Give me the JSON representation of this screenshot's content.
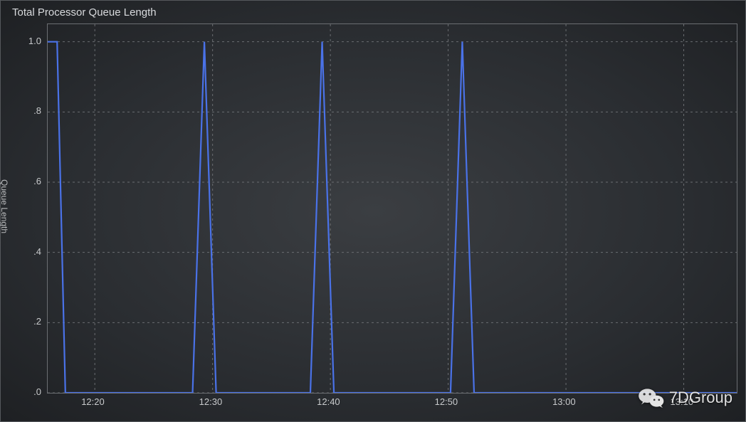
{
  "chart": {
    "type": "line",
    "title": "Total Processor Queue Length",
    "y_axis_label": "Queue Length",
    "background_gradient_inner": "#3b3e42",
    "background_gradient_outer": "#1e2023",
    "panel_border_color": "#55585c",
    "plot_border_color": "#6b6e72",
    "grid_color": "#6a6d71",
    "grid_dash": "3 4",
    "title_color": "#d8dadd",
    "tick_label_color": "#c8cacc",
    "axis_title_color": "#b8babc",
    "line_color": "#4a72e8",
    "line_width": 2.2,
    "title_fontsize": 15,
    "tick_fontsize": 13,
    "axis_title_fontsize": 12,
    "y": {
      "min": 0.0,
      "max": 1.05,
      "ticks": [
        0.0,
        0.2,
        0.4,
        0.6,
        0.8,
        1.0
      ],
      "tick_labels": [
        ".0",
        ".2",
        ".4",
        ".6",
        ".8",
        "1.0"
      ]
    },
    "x": {
      "min": 736.0,
      "max": 794.5,
      "ticks": [
        740,
        750,
        760,
        770,
        780,
        790
      ],
      "tick_labels": [
        "12:20",
        "12:30",
        "12:40",
        "12:50",
        "13:00",
        "13:10"
      ]
    },
    "series": [
      {
        "name": "queue_length",
        "points": [
          [
            736.0,
            1.0
          ],
          [
            736.8,
            1.0
          ],
          [
            737.5,
            0.0
          ],
          [
            748.3,
            0.0
          ],
          [
            749.3,
            1.0
          ],
          [
            750.3,
            0.0
          ],
          [
            758.3,
            0.0
          ],
          [
            759.3,
            1.0
          ],
          [
            760.3,
            0.0
          ],
          [
            770.2,
            0.0
          ],
          [
            771.2,
            1.0
          ],
          [
            772.2,
            0.0
          ],
          [
            794.5,
            0.0
          ]
        ]
      }
    ]
  },
  "watermark": {
    "label": "7DGroup",
    "text_color": "#f0f0f0",
    "fontsize": 22,
    "icon_color": "#e8e8e8"
  }
}
